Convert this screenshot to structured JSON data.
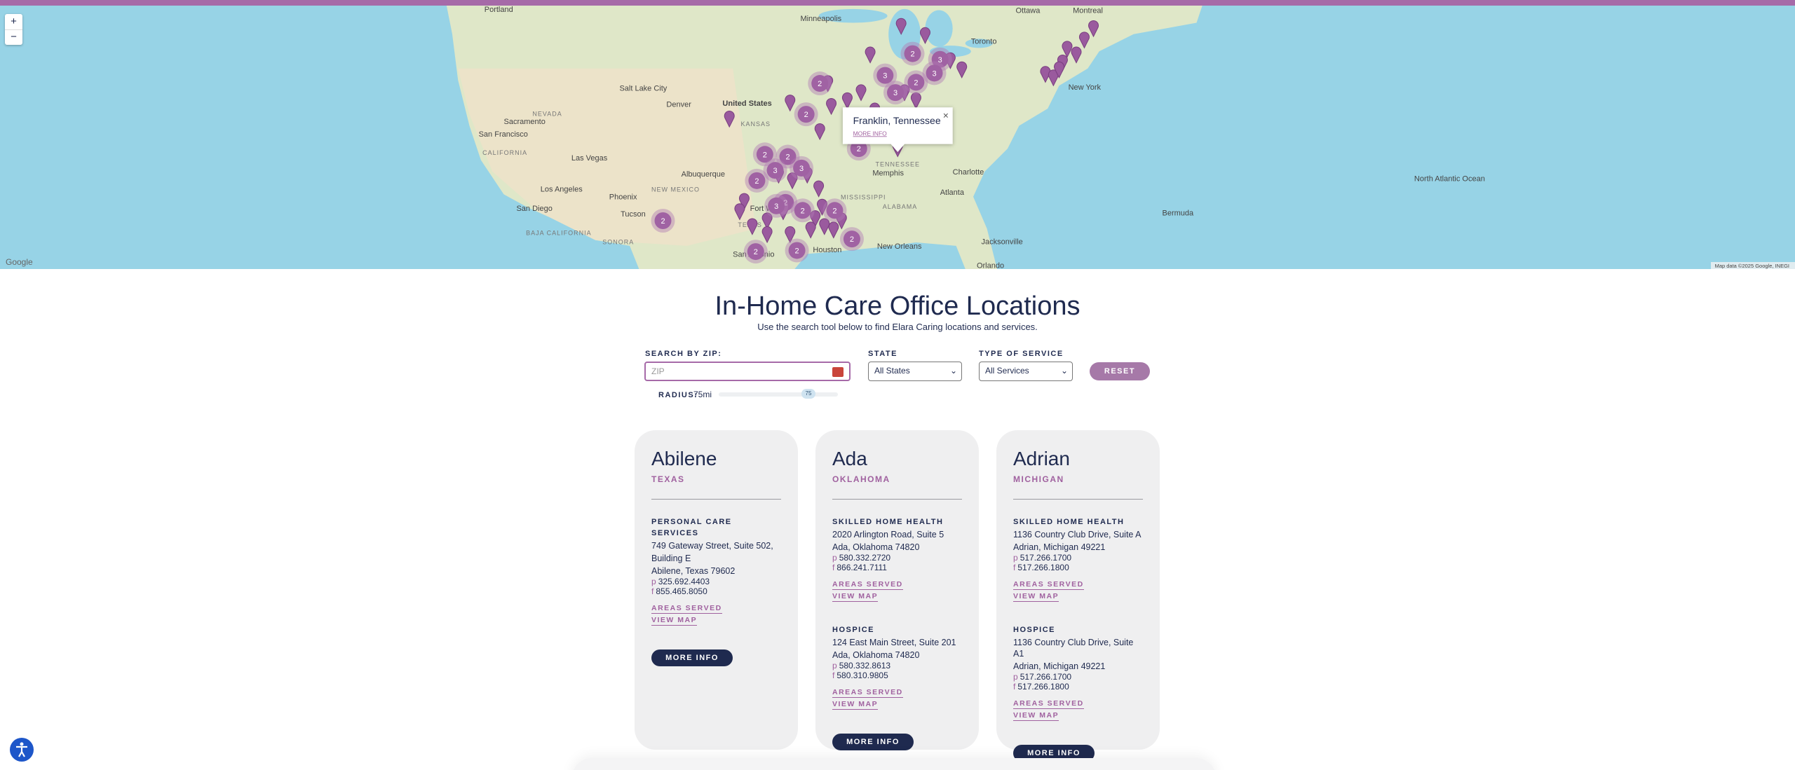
{
  "map": {
    "zoom_in": "+",
    "zoom_out": "−",
    "labels": [
      "Portland",
      "Minneapolis",
      "Ottawa",
      "Montreal",
      "Toronto",
      "Salt Lake City",
      "Denver",
      "United States",
      "Sacramento",
      "San Francisco",
      "Las Vegas",
      "Los Angeles",
      "Phoenix",
      "Albuquerque",
      "San Diego",
      "Tucson",
      "Fort Worth",
      "Memphis",
      "Charlotte",
      "Atlanta",
      "New York",
      "Bermuda",
      "Jacksonville",
      "Houston",
      "San Antonio",
      "New Orleans",
      "Orlando",
      "KANSAS",
      "TEXAS",
      "TENNESSEE",
      "MISSISSIPPI",
      "ALABAMA",
      "NEW MEXICO",
      "CALIFORNIA",
      "NEVADA",
      "BAJA CALIFORNIA",
      "SONORA",
      "North Atlantic Ocean"
    ],
    "clusters": [
      2,
      3,
      2,
      3,
      3,
      2,
      3,
      2,
      2,
      2,
      3,
      3,
      2,
      2,
      3,
      2,
      2,
      2,
      2,
      2,
      2,
      2
    ],
    "popup": {
      "title": "Franklin, Tennessee",
      "link": "MORE INFO",
      "close": "×"
    },
    "logo": "Google",
    "attribution": "Map data ©2025 Google, INEGI"
  },
  "header": {
    "title": "In-Home Care Office Locations",
    "subtitle": "Use the search tool below to find Elara Caring locations and services."
  },
  "form": {
    "zip_label": "SEARCH BY ZIP:",
    "zip_placeholder": "ZIP",
    "state_label": "STATE",
    "state_value": "All States",
    "service_label": "TYPE OF SERVICE",
    "service_value": "All Services",
    "reset": "RESET",
    "radius_label": "RADIUS:",
    "radius_value": "75mi",
    "slider_value": "75"
  },
  "cards": [
    {
      "city": "Abilene",
      "state": "TEXAS",
      "services": [
        {
          "type": "PERSONAL CARE SERVICES",
          "address": [
            "749 Gateway Street, Suite 502,",
            "Building E",
            "Abilene, Texas 79602"
          ],
          "phone": {
            "label": "p",
            "number": "325.692.4403"
          },
          "fax": {
            "label": "f",
            "number": "855.465.8050"
          },
          "links": [
            "AREAS SERVED",
            "VIEW MAP"
          ]
        }
      ],
      "button": "MORE INFO"
    },
    {
      "city": "Ada",
      "state": "OKLAHOMA",
      "services": [
        {
          "type": "SKILLED HOME HEALTH",
          "address": [
            "2020 Arlington Road, Suite 5",
            "Ada, Oklahoma 74820"
          ],
          "phone": {
            "label": "p",
            "number": "580.332.2720"
          },
          "fax": {
            "label": "f",
            "number": "866.241.7111"
          },
          "links": [
            "AREAS SERVED",
            "VIEW MAP"
          ]
        },
        {
          "type": "HOSPICE",
          "address": [
            "124 East Main Street, Suite 201",
            "Ada, Oklahoma 74820"
          ],
          "phone": {
            "label": "p",
            "number": "580.332.8613"
          },
          "fax": {
            "label": "f",
            "number": "580.310.9805"
          },
          "links": [
            "AREAS SERVED",
            "VIEW MAP"
          ]
        }
      ],
      "button": "MORE INFO"
    },
    {
      "city": "Adrian",
      "state": "MICHIGAN",
      "services": [
        {
          "type": "SKILLED HOME HEALTH",
          "address": [
            "1136 Country Club Drive, Suite A",
            "Adrian, Michigan 49221"
          ],
          "phone": {
            "label": "p",
            "number": "517.266.1700"
          },
          "fax": {
            "label": "f",
            "number": "517.266.1800"
          },
          "links": [
            "AREAS SERVED",
            "VIEW MAP"
          ]
        },
        {
          "type": "HOSPICE",
          "address": [
            "1136 Country Club Drive, Suite A1",
            "Adrian, Michigan 49221"
          ],
          "phone": {
            "label": "p",
            "number": "517.266.1700"
          },
          "fax": {
            "label": "f",
            "number": "517.266.1800"
          },
          "links": [
            "AREAS SERVED",
            "VIEW MAP"
          ]
        }
      ],
      "button": "MORE INFO"
    }
  ]
}
